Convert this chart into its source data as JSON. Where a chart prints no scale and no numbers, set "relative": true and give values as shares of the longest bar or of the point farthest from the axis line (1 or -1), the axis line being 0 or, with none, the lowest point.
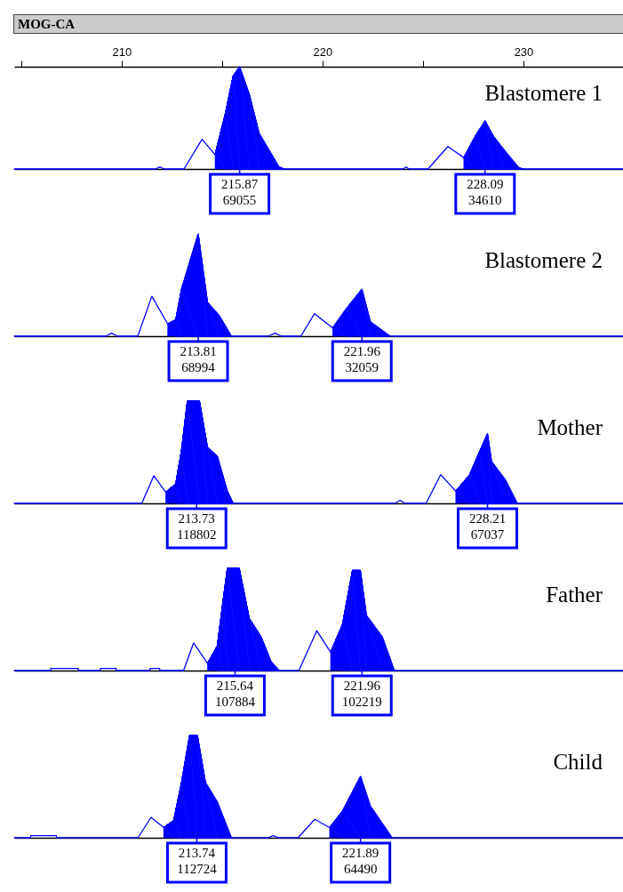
{
  "chart_data": [
    {
      "type": "line",
      "title": "Blastomere 1",
      "xlabel": "MOG-CA",
      "relative": true,
      "xlim": [
        204.65,
        235
      ],
      "xticks": [
        {
          "value": 205,
          "label": null
        },
        210,
        {
          "value": 215,
          "label": null
        },
        220,
        {
          "value": 225,
          "label": null
        },
        230,
        {
          "value": 235,
          "label": null
        }
      ],
      "series": [
        {
          "type": "line",
          "color": "#0000ff",
          "x": [
            204.65,
            211.7,
            211.9,
            212.1,
            213.1,
            214.0,
            214.65,
            215.16,
            215.55,
            215.87,
            216.35,
            216.84,
            217.83,
            218.1,
            224.0,
            224.16,
            224.3,
            225.25,
            226.24,
            227.03,
            227.6,
            228.09,
            228.5,
            229.1,
            229.78,
            230.0,
            235
          ],
          "values": [
            0,
            0,
            0.02,
            0,
            0,
            0.29,
            0.14,
            0.54,
            0.91,
            1,
            0.73,
            0.35,
            0.02,
            0,
            0,
            0.02,
            0,
            0,
            0.22,
            0.11,
            0.32,
            0.47,
            0.32,
            0.17,
            0.01,
            0,
            0
          ]
        },
        {
          "type": "area",
          "color": "#0000ff",
          "x": [
            214.65,
            215.16,
            215.55,
            215.87,
            216.35,
            216.84,
            217.83,
            218.1
          ],
          "values": [
            0.14,
            0.54,
            0.91,
            1,
            0.73,
            0.35,
            0.02,
            0
          ]
        },
        {
          "type": "area",
          "color": "#0000ff",
          "x": [
            227.03,
            227.6,
            228.09,
            228.5,
            229.1,
            229.78,
            230.0
          ],
          "values": [
            0.11,
            0.32,
            0.47,
            0.32,
            0.17,
            0.01,
            0
          ]
        }
      ],
      "annotations": [
        {
          "text": "215.87\n69055",
          "x": 215.87,
          "y": 0
        },
        {
          "text": "228.09\n34610",
          "x": 228.09,
          "y": 0
        }
      ]
    },
    {
      "type": "line",
      "title": "Blastomere 2",
      "relative": true,
      "xlim": [
        204.65,
        235
      ],
      "tick_labels": false,
      "series": [
        {
          "type": "line",
          "color": "#0000ff",
          "x": [
            204.65,
            209.2,
            209.5,
            209.8,
            210.8,
            211.5,
            212.29,
            212.69,
            212.98,
            213.81,
            214.27,
            214.86,
            215.46,
            217.3,
            217.63,
            217.95,
            218.92,
            219.6,
            220.5,
            221.19,
            221.96,
            222.38,
            223.36,
            235
          ],
          "values": [
            0,
            0,
            0.03,
            0,
            0,
            0.39,
            0.12,
            0.16,
            0.46,
            1,
            0.33,
            0.2,
            0,
            0,
            0.03,
            0,
            0,
            0.22,
            0.08,
            0.27,
            0.46,
            0.14,
            0,
            0
          ]
        },
        {
          "type": "area",
          "color": "#0000ff",
          "x": [
            212.29,
            212.69,
            212.98,
            213.81,
            214.27,
            214.86,
            215.46
          ],
          "values": [
            0.12,
            0.16,
            0.46,
            1,
            0.33,
            0.2,
            0
          ]
        },
        {
          "type": "area",
          "color": "#0000ff",
          "x": [
            220.5,
            221.19,
            221.96,
            222.38,
            223.36
          ],
          "values": [
            0.08,
            0.27,
            0.46,
            0.14,
            0
          ]
        }
      ],
      "annotations": [
        {
          "text": "213.81\n68994",
          "x": 213.81,
          "y": 0
        },
        {
          "text": "221.96\n32059",
          "x": 221.96,
          "y": 0
        }
      ]
    },
    {
      "type": "line",
      "title": "Mother",
      "relative": true,
      "xlim": [
        204.65,
        235
      ],
      "tick_labels": false,
      "series": [
        {
          "type": "line",
          "color": "#0000ff",
          "x": [
            204.65,
            211.0,
            211.6,
            212.19,
            212.69,
            212.98,
            213.27,
            213.87,
            214.27,
            214.76,
            215.26,
            215.55,
            223.6,
            223.86,
            224.1,
            225.15,
            225.88,
            226.63,
            227.32,
            227.8,
            228.21,
            228.41,
            229.1,
            229.69,
            235
          ],
          "values": [
            0,
            0,
            0.27,
            0.11,
            0.19,
            0.52,
            1,
            1,
            0.55,
            0.46,
            0.12,
            0,
            0,
            0.03,
            0,
            0,
            0.28,
            0.12,
            0.28,
            0.5,
            0.68,
            0.41,
            0.23,
            0,
            0
          ]
        },
        {
          "type": "area",
          "color": "#0000ff",
          "x": [
            212.19,
            212.69,
            212.98,
            213.27,
            213.87,
            214.27,
            214.76,
            215.26,
            215.55
          ],
          "values": [
            0.11,
            0.19,
            0.52,
            1,
            1,
            0.55,
            0.46,
            0.12,
            0
          ]
        },
        {
          "type": "area",
          "color": "#0000ff",
          "x": [
            226.63,
            227.32,
            227.8,
            228.21,
            228.41,
            229.1,
            229.69
          ],
          "values": [
            0.12,
            0.28,
            0.5,
            0.68,
            0.41,
            0.23,
            0
          ]
        }
      ],
      "annotations": [
        {
          "text": "213.73\n118802",
          "x": 213.73,
          "y": 0
        },
        {
          "text": "228.21\n67037",
          "x": 228.21,
          "y": 0
        }
      ]
    },
    {
      "type": "line",
      "title": "Father",
      "relative": true,
      "xlim": [
        204.65,
        235
      ],
      "tick_labels": false,
      "series": [
        {
          "type": "line",
          "color": "#0000ff",
          "x": [
            204.65,
            206.46,
            206.47,
            207.84,
            207.85,
            208.93,
            208.94,
            209.72,
            209.73,
            211.4,
            211.41,
            211.89,
            211.9,
            213.08,
            213.58,
            214.27,
            214.76,
            215.06,
            215.26,
            215.85,
            216.35,
            216.94,
            217.43,
            217.83,
            218.82,
            219.71,
            220.4,
            220.99,
            221.49,
            221.88,
            222.18,
            222.97,
            223.57,
            235
          ],
          "values": [
            0,
            0,
            0.02,
            0.02,
            0,
            0,
            0.02,
            0.02,
            0,
            0,
            0.02,
            0.02,
            0,
            0,
            0.27,
            0.07,
            0.24,
            0.7,
            1,
            1,
            0.51,
            0.33,
            0.09,
            0,
            0,
            0.39,
            0.18,
            0.45,
            0.98,
            0.98,
            0.54,
            0.33,
            0,
            0
          ]
        },
        {
          "type": "area",
          "color": "#0000ff",
          "x": [
            214.27,
            214.76,
            215.06,
            215.26,
            215.85,
            216.35,
            216.94,
            217.43,
            217.83
          ],
          "values": [
            0.07,
            0.24,
            0.7,
            1,
            1,
            0.51,
            0.33,
            0.09,
            0
          ]
        },
        {
          "type": "area",
          "color": "#0000ff",
          "x": [
            220.4,
            220.99,
            221.49,
            221.88,
            222.18,
            222.97,
            223.57
          ],
          "values": [
            0.18,
            0.45,
            0.98,
            0.98,
            0.54,
            0.33,
            0
          ]
        }
      ],
      "annotations": [
        {
          "text": "215.64\n107884",
          "x": 215.64,
          "y": 0
        },
        {
          "text": "221.96\n102219",
          "x": 221.96,
          "y": 0
        }
      ]
    },
    {
      "type": "line",
      "title": "Child",
      "relative": true,
      "xlim": [
        204.65,
        235
      ],
      "tick_labels": false,
      "series": [
        {
          "type": "line",
          "color": "#0000ff",
          "x": [
            204.65,
            205.46,
            205.47,
            206.75,
            206.76,
            210.81,
            211.46,
            212.09,
            212.59,
            212.98,
            213.38,
            213.77,
            214.17,
            214.76,
            215.46,
            217.3,
            217.53,
            217.8,
            218.78,
            219.61,
            220.35,
            220.99,
            221.89,
            222.38,
            223.46,
            235
          ],
          "values": [
            0,
            0,
            0.02,
            0.02,
            0,
            0,
            0.2,
            0.1,
            0.17,
            0.54,
            1,
            1,
            0.54,
            0.35,
            0,
            0,
            0.02,
            0,
            0,
            0.18,
            0.1,
            0.26,
            0.6,
            0.31,
            0,
            0
          ]
        },
        {
          "type": "area",
          "color": "#0000ff",
          "x": [
            212.09,
            212.59,
            212.98,
            213.38,
            213.77,
            214.17,
            214.76,
            215.46
          ],
          "values": [
            0.1,
            0.17,
            0.54,
            1,
            1,
            0.54,
            0.35,
            0
          ]
        },
        {
          "type": "area",
          "color": "#0000ff",
          "x": [
            220.35,
            220.99,
            221.89,
            222.38,
            223.46
          ],
          "values": [
            0.1,
            0.26,
            0.6,
            0.31,
            0
          ]
        }
      ],
      "annotations": [
        {
          "text": "213.74\n112724",
          "x": 213.74,
          "y": 0
        },
        {
          "text": "221.89\n64490",
          "x": 221.89,
          "y": 0
        }
      ]
    }
  ]
}
